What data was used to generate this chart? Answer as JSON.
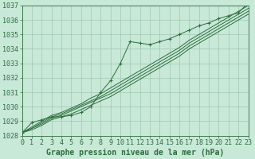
{
  "background_color": "#c8e8d8",
  "grid_color": "#a0c8b0",
  "line_color": "#2d6e3e",
  "text_color": "#2d6e3e",
  "xlabel": "Graphe pression niveau de la mer (hPa)",
  "ylim": [
    1028,
    1037
  ],
  "xlim": [
    0,
    23
  ],
  "yticks": [
    1028,
    1029,
    1030,
    1031,
    1032,
    1033,
    1034,
    1035,
    1036,
    1037
  ],
  "xticks": [
    0,
    1,
    2,
    3,
    4,
    5,
    6,
    7,
    8,
    9,
    10,
    11,
    12,
    13,
    14,
    15,
    16,
    17,
    18,
    19,
    20,
    21,
    22,
    23
  ],
  "band_series": [
    [
      1028.2,
      1028.4,
      1028.7,
      1029.1,
      1029.3,
      1029.5,
      1029.8,
      1030.1,
      1030.4,
      1030.7,
      1031.1,
      1031.5,
      1031.9,
      1032.3,
      1032.7,
      1033.1,
      1033.5,
      1034.0,
      1034.4,
      1034.8,
      1035.2,
      1035.6,
      1036.0,
      1036.4
    ],
    [
      1028.2,
      1028.5,
      1028.8,
      1029.2,
      1029.4,
      1029.7,
      1030.0,
      1030.3,
      1030.6,
      1030.9,
      1031.3,
      1031.7,
      1032.1,
      1032.5,
      1032.9,
      1033.3,
      1033.7,
      1034.2,
      1034.6,
      1035.0,
      1035.4,
      1035.8,
      1036.2,
      1036.6
    ],
    [
      1028.2,
      1028.5,
      1028.9,
      1029.3,
      1029.5,
      1029.8,
      1030.1,
      1030.4,
      1030.7,
      1031.1,
      1031.5,
      1031.9,
      1032.3,
      1032.7,
      1033.1,
      1033.5,
      1033.9,
      1034.4,
      1034.8,
      1035.2,
      1035.6,
      1036.0,
      1036.4,
      1036.8
    ],
    [
      1028.2,
      1028.6,
      1029.0,
      1029.4,
      1029.6,
      1029.9,
      1030.2,
      1030.6,
      1030.9,
      1031.3,
      1031.7,
      1032.1,
      1032.5,
      1032.9,
      1033.3,
      1033.7,
      1034.1,
      1034.6,
      1035.0,
      1035.4,
      1035.8,
      1036.2,
      1036.6,
      1037.0
    ]
  ],
  "main_y": [
    1028.2,
    1028.9,
    1029.1,
    1029.3,
    1029.3,
    1029.4,
    1029.6,
    1030.0,
    1031.0,
    1031.8,
    1033.0,
    1034.5,
    1034.4,
    1034.3,
    1034.5,
    1034.7,
    1035.0,
    1035.3,
    1035.6,
    1035.8,
    1036.1,
    1036.3,
    1036.5,
    1037.2
  ],
  "font_size_xlabel": 7,
  "font_size_ticks": 6
}
